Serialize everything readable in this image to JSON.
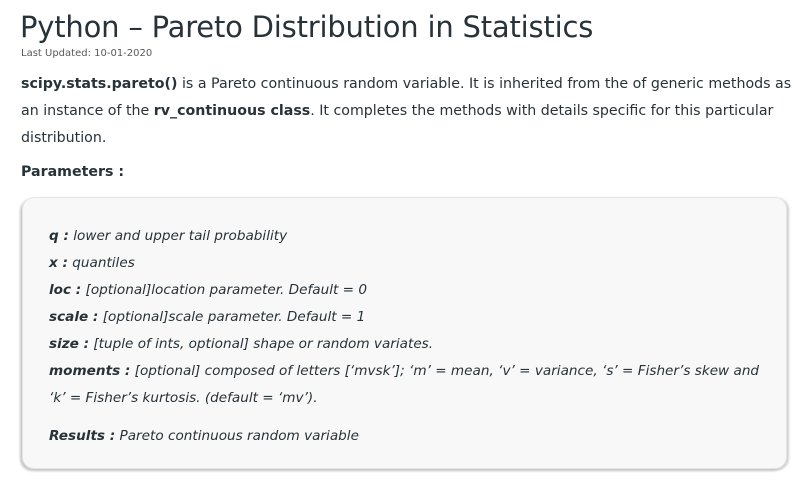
{
  "article": {
    "title": "Python – Pareto Distribution in Statistics",
    "last_updated": "Last Updated: 10-01-2020",
    "intro": {
      "func_name": "scipy.stats.pareto()",
      "text1": " is a Pareto continuous random variable. It is inherited from the of generic methods as an instance of the ",
      "class_name": "rv_continuous class",
      "text2": ". It completes the methods with details specific for this particular distribution."
    },
    "parameters_heading": "Parameters :",
    "parameters": [
      {
        "name": "q :",
        "desc": " lower and upper tail probability"
      },
      {
        "name": "x :",
        "desc": " quantiles"
      },
      {
        "name": "loc :",
        "desc": " [optional]location parameter. Default = 0"
      },
      {
        "name": "scale :",
        "desc": " [optional]scale parameter. Default = 1"
      },
      {
        "name": "size :",
        "desc": " [tuple of ints, optional] shape or random variates."
      },
      {
        "name": "moments :",
        "desc": " [optional] composed of letters [‘mvsk’]; ‘m’ = mean, ‘v’ = variance, ‘s’ = Fisher’s skew and ‘k’ = Fisher’s kurtosis. (default = ‘mv’)."
      }
    ],
    "results": {
      "name": "Results :",
      "desc": " Pareto continuous random variable"
    }
  }
}
